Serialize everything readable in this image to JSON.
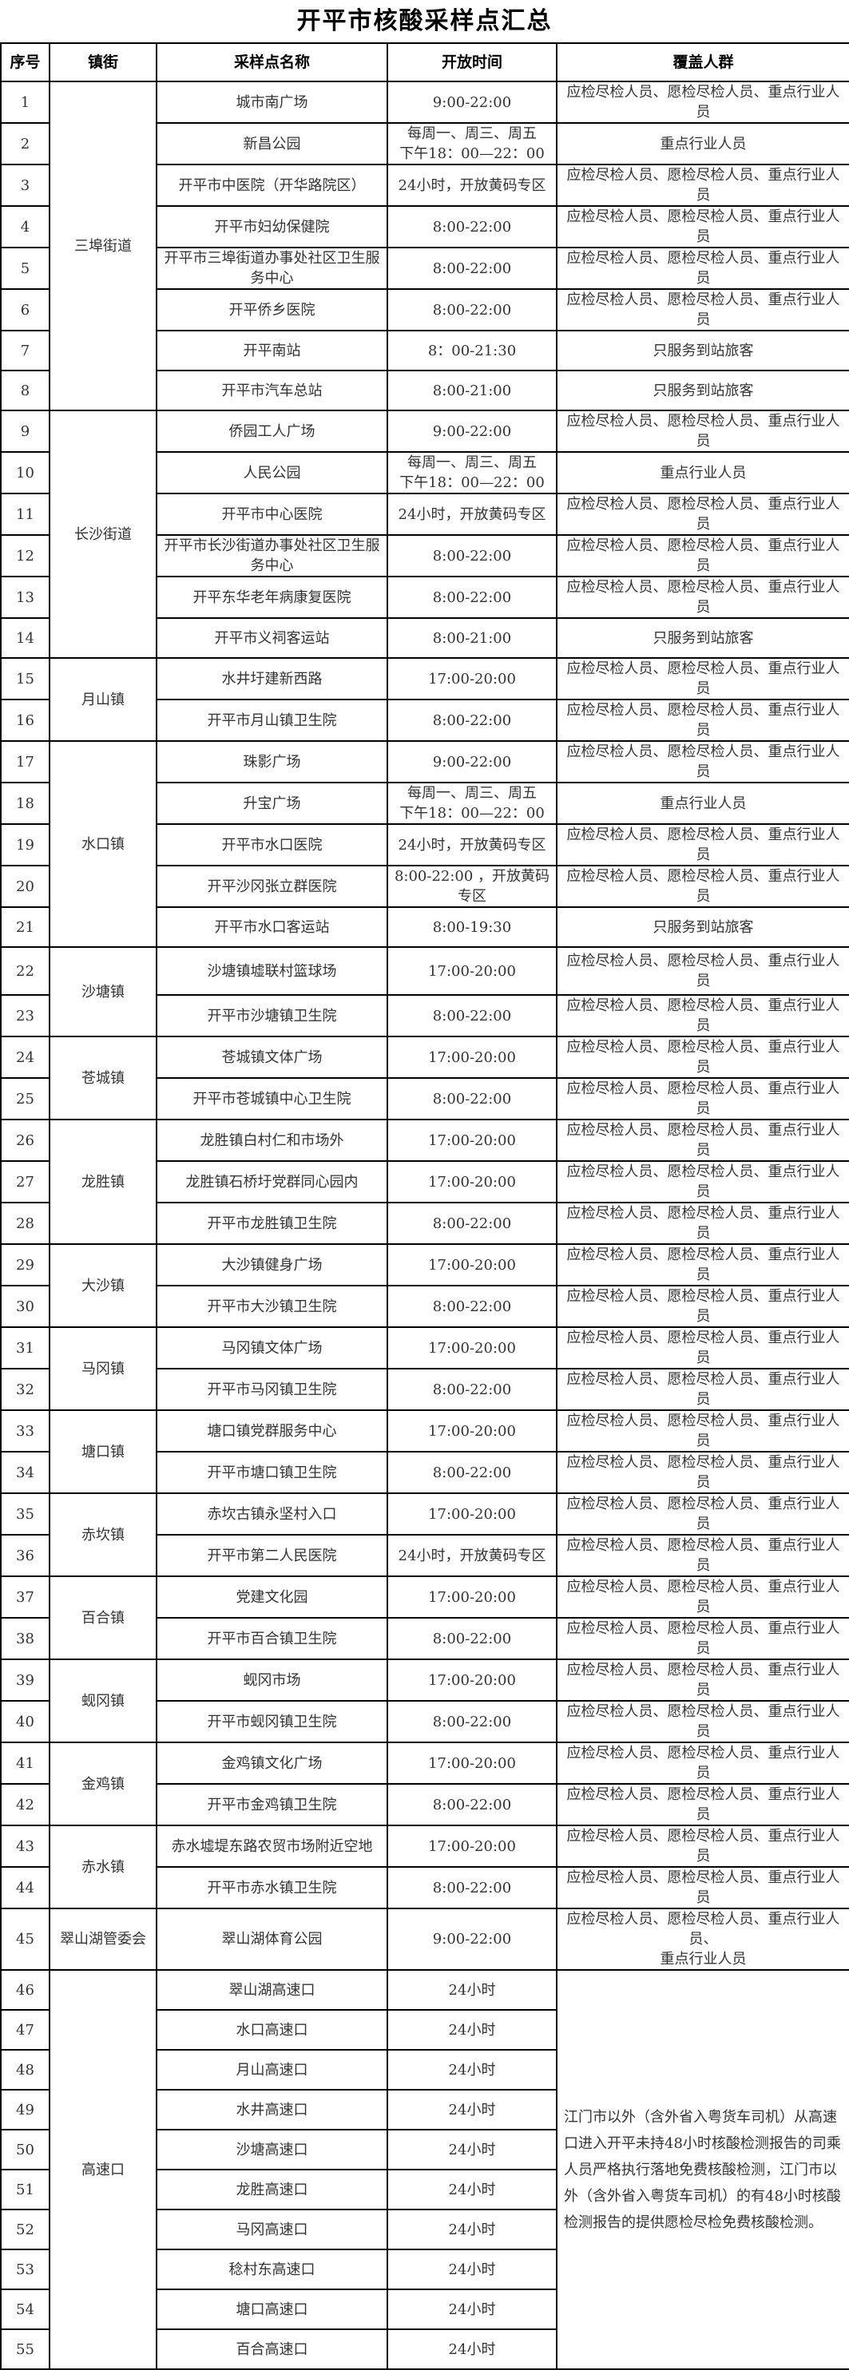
{
  "title": "开平市核酸采样点汇总",
  "headers": [
    "序号",
    "镇街",
    "采样点名称",
    "开放时间",
    "覆盖人群"
  ],
  "groups": [
    {
      "town": "三埠街道",
      "sites": [
        {
          "no": "1",
          "name": "城市南广场",
          "hours": "9:00-22:00",
          "coverage": "应检尽检人员、愿检尽检人员、重点行业人员"
        },
        {
          "no": "2",
          "name": "新昌公园",
          "hours": "每周一、周三、周五\n下午18：00—22：00",
          "coverage": "重点行业人员"
        },
        {
          "no": "3",
          "name": "开平市中医院（开华路院区）",
          "hours": "24小时，开放黄码专区",
          "coverage": "应检尽检人员、愿检尽检人员、重点行业人员"
        },
        {
          "no": "4",
          "name": "开平市妇幼保健院",
          "hours": "8:00-22:00",
          "coverage": "应检尽检人员、愿检尽检人员、重点行业人员"
        },
        {
          "no": "5",
          "name": "开平市三埠街道办事处社区卫生服务中心",
          "hours": "8:00-22:00",
          "coverage": "应检尽检人员、愿检尽检人员、重点行业人员"
        },
        {
          "no": "6",
          "name": "开平侨乡医院",
          "hours": "8:00-22:00",
          "coverage": "应检尽检人员、愿检尽检人员、重点行业人员"
        },
        {
          "no": "7",
          "name": "开平南站",
          "hours": "8：00-21:30",
          "coverage": "只服务到站旅客"
        },
        {
          "no": "8",
          "name": "开平市汽车总站",
          "hours": "8:00-21:00",
          "coverage": "只服务到站旅客"
        }
      ]
    },
    {
      "town": "长沙街道",
      "sites": [
        {
          "no": "9",
          "name": "侨园工人广场",
          "hours": "9:00-22:00",
          "coverage": "应检尽检人员、愿检尽检人员、重点行业人员"
        },
        {
          "no": "10",
          "name": "人民公园",
          "hours": "每周一、周三、周五\n下午18：00—22：00",
          "coverage": "重点行业人员"
        },
        {
          "no": "11",
          "name": "开平市中心医院",
          "hours": "24小时，开放黄码专区",
          "coverage": "应检尽检人员、愿检尽检人员、重点行业人员"
        },
        {
          "no": "12",
          "name": "开平市长沙街道办事处社区卫生服务中心",
          "hours": "8:00-22:00",
          "coverage": "应检尽检人员、愿检尽检人员、重点行业人员"
        },
        {
          "no": "13",
          "name": "开平东华老年病康复医院",
          "hours": "8:00-22:00",
          "coverage": "应检尽检人员、愿检尽检人员、重点行业人员"
        },
        {
          "no": "14",
          "name": "开平市义祠客运站",
          "hours": "8:00-21:00",
          "coverage": "只服务到站旅客"
        }
      ]
    },
    {
      "town": "月山镇",
      "sites": [
        {
          "no": "15",
          "name": "水井圩建新西路",
          "hours": "17:00-20:00",
          "coverage": "应检尽检人员、愿检尽检人员、重点行业人员"
        },
        {
          "no": "16",
          "name": "开平市月山镇卫生院",
          "hours": "8:00-22:00",
          "coverage": "应检尽检人员、愿检尽检人员、重点行业人员"
        }
      ]
    },
    {
      "town": "水口镇",
      "sites": [
        {
          "no": "17",
          "name": "珠影广场",
          "hours": "9:00-22:00",
          "coverage": "应检尽检人员、愿检尽检人员、重点行业人员"
        },
        {
          "no": "18",
          "name": "升宝广场",
          "hours": "每周一、周三、周五\n下午18：00—22：00",
          "coverage": "重点行业人员"
        },
        {
          "no": "19",
          "name": "开平市水口医院",
          "hours": "24小时，开放黄码专区",
          "coverage": "应检尽检人员、愿检尽检人员、重点行业人员"
        },
        {
          "no": "20",
          "name": "开平沙冈张立群医院",
          "hours": "8:00-22:00 ，开放黄码专区",
          "coverage": "应检尽检人员、愿检尽检人员、重点行业人员"
        },
        {
          "no": "21",
          "name": "开平市水口客运站",
          "hours": "8:00-19:30",
          "coverage": "只服务到站旅客"
        }
      ]
    },
    {
      "town": "沙塘镇",
      "sites": [
        {
          "no": "22",
          "name": "沙塘镇墟联村篮球场",
          "hours": "17:00-20:00",
          "coverage": "应检尽检人员、愿检尽检人员、重点行业人员"
        },
        {
          "no": "23",
          "name": "开平市沙塘镇卫生院",
          "hours": "8:00-22:00",
          "coverage": "应检尽检人员、愿检尽检人员、重点行业人员"
        }
      ]
    },
    {
      "town": "苍城镇",
      "sites": [
        {
          "no": "24",
          "name": "苍城镇文体广场",
          "hours": "17:00-20:00",
          "coverage": "应检尽检人员、愿检尽检人员、重点行业人员"
        },
        {
          "no": "25",
          "name": "开平市苍城镇中心卫生院",
          "hours": "8:00-22:00",
          "coverage": "应检尽检人员、愿检尽检人员、重点行业人员"
        }
      ]
    },
    {
      "town": "龙胜镇",
      "sites": [
        {
          "no": "26",
          "name": "龙胜镇白村仁和市场外",
          "hours": "17:00-20:00",
          "coverage": "应检尽检人员、愿检尽检人员、重点行业人员"
        },
        {
          "no": "27",
          "name": "龙胜镇石桥圩党群同心园内",
          "hours": "17:00-20:00",
          "coverage": "应检尽检人员、愿检尽检人员、重点行业人员"
        },
        {
          "no": "28",
          "name": "开平市龙胜镇卫生院",
          "hours": "8:00-22:00",
          "coverage": "应检尽检人员、愿检尽检人员、重点行业人员"
        }
      ]
    },
    {
      "town": "大沙镇",
      "sites": [
        {
          "no": "29",
          "name": "大沙镇健身广场",
          "hours": "17:00-20:00",
          "coverage": "应检尽检人员、愿检尽检人员、重点行业人员"
        },
        {
          "no": "30",
          "name": "开平市大沙镇卫生院",
          "hours": "8:00-22:00",
          "coverage": "应检尽检人员、愿检尽检人员、重点行业人员"
        }
      ]
    },
    {
      "town": "马冈镇",
      "sites": [
        {
          "no": "31",
          "name": "马冈镇文体广场",
          "hours": "17:00-20:00",
          "coverage": "应检尽检人员、愿检尽检人员、重点行业人员"
        },
        {
          "no": "32",
          "name": "开平市马冈镇卫生院",
          "hours": "8:00-22:00",
          "coverage": "应检尽检人员、愿检尽检人员、重点行业人员"
        }
      ]
    },
    {
      "town": "塘口镇",
      "sites": [
        {
          "no": "33",
          "name": "塘口镇党群服务中心",
          "hours": "17:00-20:00",
          "coverage": "应检尽检人员、愿检尽检人员、重点行业人员"
        },
        {
          "no": "34",
          "name": "开平市塘口镇卫生院",
          "hours": "8:00-22:00",
          "coverage": "应检尽检人员、愿检尽检人员、重点行业人员"
        }
      ]
    },
    {
      "town": "赤坎镇",
      "sites": [
        {
          "no": "35",
          "name": "赤坎古镇永坚村入口",
          "hours": "17:00-20:00",
          "coverage": "应检尽检人员、愿检尽检人员、重点行业人员"
        },
        {
          "no": "36",
          "name": "开平市第二人民医院",
          "hours": "24小时，开放黄码专区",
          "coverage": "应检尽检人员、愿检尽检人员、重点行业人员"
        }
      ]
    },
    {
      "town": "百合镇",
      "sites": [
        {
          "no": "37",
          "name": "党建文化园",
          "hours": "17:00-20:00",
          "coverage": "应检尽检人员、愿检尽检人员、重点行业人员"
        },
        {
          "no": "38",
          "name": "开平市百合镇卫生院",
          "hours": "8:00-22:00",
          "coverage": "应检尽检人员、愿检尽检人员、重点行业人员"
        }
      ]
    },
    {
      "town": "蚬冈镇",
      "sites": [
        {
          "no": "39",
          "name": "蚬冈市场",
          "hours": "17:00-20:00",
          "coverage": "应检尽检人员、愿检尽检人员、重点行业人员"
        },
        {
          "no": "40",
          "name": "开平市蚬冈镇卫生院",
          "hours": "8:00-22:00",
          "coverage": "应检尽检人员、愿检尽检人员、重点行业人员"
        }
      ]
    },
    {
      "town": "金鸡镇",
      "sites": [
        {
          "no": "41",
          "name": "金鸡镇文化广场",
          "hours": "17:00-20:00",
          "coverage": "应检尽检人员、愿检尽检人员、重点行业人员"
        },
        {
          "no": "42",
          "name": "开平市金鸡镇卫生院",
          "hours": "8:00-22:00",
          "coverage": "应检尽检人员、愿检尽检人员、重点行业人员"
        }
      ]
    },
    {
      "town": "赤水镇",
      "sites": [
        {
          "no": "43",
          "name": "赤水墟堤东路农贸市场附近空地",
          "hours": "17:00-20:00",
          "coverage": "应检尽检人员、愿检尽检人员、重点行业人员"
        },
        {
          "no": "44",
          "name": "开平市赤水镇卫生院",
          "hours": "8:00-22:00",
          "coverage": "应检尽检人员、愿检尽检人员、重点行业人员"
        }
      ]
    },
    {
      "town": "翠山湖管委会",
      "sites": [
        {
          "no": "45",
          "name": "翠山湖体育公园",
          "hours": "9:00-22:00",
          "coverage": "应检尽检人员、愿检尽检人员、重点行业人员、\n重点行业人员"
        }
      ]
    },
    {
      "town": "高速口",
      "coverage": "江门市以外（含外省入粤货车司机）从高速口进入开平未持48小时核酸检测报告的司乘人员严格执行落地免费核酸检测，江门市以外（含外省入粤货车司机）的有48小时核酸检测报告的提供愿检尽检免费核酸检测。",
      "sites": [
        {
          "no": "46",
          "name": "翠山湖高速口",
          "hours": "24小时"
        },
        {
          "no": "47",
          "name": "水口高速口",
          "hours": "24小时"
        },
        {
          "no": "48",
          "name": "月山高速口",
          "hours": "24小时"
        },
        {
          "no": "49",
          "name": "水井高速口",
          "hours": "24小时"
        },
        {
          "no": "50",
          "name": "沙塘高速口",
          "hours": "24小时"
        },
        {
          "no": "51",
          "name": "龙胜高速口",
          "hours": "24小时"
        },
        {
          "no": "52",
          "name": "马冈高速口",
          "hours": "24小时"
        },
        {
          "no": "53",
          "name": "稔村东高速口",
          "hours": "24小时"
        },
        {
          "no": "54",
          "name": "塘口高速口",
          "hours": "24小时"
        },
        {
          "no": "55",
          "name": "百合高速口",
          "hours": "24小时"
        }
      ]
    }
  ]
}
